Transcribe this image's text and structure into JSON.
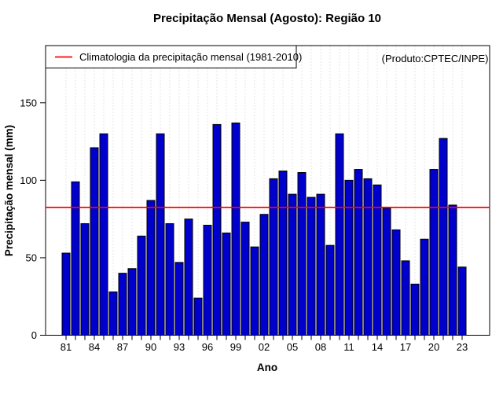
{
  "chart_data": {
    "type": "bar",
    "title": "Precipitação Mensal (Agosto): Região 10",
    "xlabel": "Ano",
    "ylabel": "Precipitação mensal (mm)",
    "years": [
      1981,
      1982,
      1983,
      1984,
      1985,
      1986,
      1987,
      1988,
      1989,
      1990,
      1991,
      1992,
      1993,
      1994,
      1995,
      1996,
      1997,
      1998,
      1999,
      2000,
      2001,
      2002,
      2003,
      2004,
      2005,
      2006,
      2007,
      2008,
      2009,
      2010,
      2011,
      2012,
      2013,
      2014,
      2015,
      2016,
      2017,
      2018,
      2019,
      2020,
      2021,
      2022,
      2023
    ],
    "values": [
      53,
      99,
      72,
      121,
      130,
      28,
      40,
      43,
      64,
      87,
      130,
      72,
      47,
      75,
      24,
      71,
      136,
      66,
      137,
      73,
      57,
      78,
      101,
      106,
      91,
      105,
      89,
      91,
      58,
      130,
      100,
      107,
      101,
      97,
      82,
      68,
      48,
      33,
      62,
      107,
      127,
      84,
      44
    ],
    "xtick_labels": [
      "81",
      "84",
      "87",
      "90",
      "93",
      "96",
      "99",
      "02",
      "05",
      "08",
      "11",
      "14",
      "17",
      "20",
      "23"
    ],
    "ytick_values": [
      0,
      50,
      100,
      150
    ],
    "ylim": [
      0,
      187
    ],
    "climatology_value": 82.5,
    "legend_label": "Climatologia da precipitação mensal (1981-2010)",
    "legend_position": "topleft",
    "annotation": "(Produto:CPTEC/INPE)",
    "bar_color": "#0000CD",
    "bar_border_color": "#000000",
    "climatology_color": "#FF0000",
    "annotation_color": "#9C9C9C",
    "grid": "vertical-dotted-per-year",
    "legend_visible": true
  }
}
